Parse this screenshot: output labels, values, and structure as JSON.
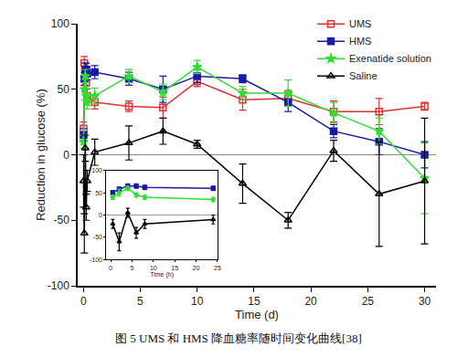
{
  "chart_data": [
    {
      "type": "line",
      "title": "图 5 UMS 和 HMS 降血糖率随时间变化曲线[38]",
      "x_label": "Time (d)",
      "y_label": "Reduction in glucose (%)",
      "x": [
        0.02,
        0.083,
        0.167,
        0.25,
        0.333,
        1,
        4,
        7,
        10,
        14,
        18,
        22,
        26,
        30
      ],
      "series": [
        {
          "name": "UMS",
          "color": "#e03030",
          "marker": "square-open",
          "values": [
            20,
            70,
            62,
            55,
            45,
            40,
            37,
            36,
            56,
            42,
            43,
            33,
            33,
            37
          ],
          "errors": [
            5,
            5,
            5,
            5,
            5,
            5,
            4,
            8,
            4,
            8,
            6,
            8,
            10,
            3
          ]
        },
        {
          "name": "HMS",
          "color": "#1a1aa8",
          "marker": "square",
          "values": [
            15,
            58,
            65,
            65,
            62,
            63,
            58,
            50,
            60,
            58,
            40,
            18,
            10,
            0
          ],
          "errors": [
            5,
            5,
            5,
            5,
            5,
            5,
            5,
            10,
            5,
            3,
            7,
            5,
            10,
            10
          ]
        },
        {
          "name": "Exenatide solution",
          "color": "#33dd33",
          "marker": "star",
          "values": [
            10,
            50,
            60,
            45,
            40,
            45,
            60,
            48,
            67,
            47,
            47,
            32,
            18,
            -18
          ],
          "errors": [
            5,
            8,
            5,
            5,
            5,
            6,
            5,
            6,
            5,
            5,
            10,
            8,
            10,
            27
          ]
        },
        {
          "name": "Saline",
          "color": "#000000",
          "marker": "triangle-up-open",
          "values": [
            -20,
            -60,
            5,
            -40,
            -20,
            2,
            9,
            18,
            8,
            -22,
            -50,
            3,
            -30,
            -20
          ],
          "errors": [
            20,
            15,
            10,
            10,
            8,
            10,
            13,
            10,
            3,
            15,
            6,
            8,
            40,
            48
          ]
        }
      ],
      "xlim": [
        -0.5,
        31
      ],
      "xticks": [
        0,
        5,
        10,
        15,
        20,
        25,
        30
      ],
      "ylim": [
        -100,
        100
      ],
      "yticks": [
        -100,
        -50,
        0,
        50,
        100
      ],
      "legend": "upper right",
      "grid": false
    },
    {
      "type": "line",
      "x_label": "Time (h)",
      "x": [
        0.5,
        2,
        4,
        6,
        8,
        24
      ],
      "series": [
        {
          "name": "HMS",
          "color": "#1a1aa8",
          "marker": "square",
          "values": [
            50,
            58,
            65,
            65,
            62,
            60
          ],
          "errors": [
            5,
            5,
            5,
            5,
            5,
            5
          ]
        },
        {
          "name": "Exenatide solution",
          "color": "#33dd33",
          "marker": "star",
          "values": [
            40,
            50,
            60,
            45,
            40,
            35
          ],
          "errors": [
            5,
            8,
            5,
            5,
            5,
            5
          ]
        },
        {
          "name": "Saline",
          "color": "#000000",
          "marker": "triangle-up-open",
          "values": [
            -20,
            -60,
            5,
            -40,
            -20,
            -10
          ],
          "errors": [
            10,
            20,
            10,
            12,
            10,
            10
          ]
        }
      ],
      "xlim": [
        -1,
        25
      ],
      "xticks": [
        0,
        5,
        10,
        15,
        20,
        25
      ],
      "ylim": [
        -100,
        100
      ],
      "yticks": [
        -100,
        -50,
        0,
        50,
        100
      ],
      "grid": false
    }
  ]
}
